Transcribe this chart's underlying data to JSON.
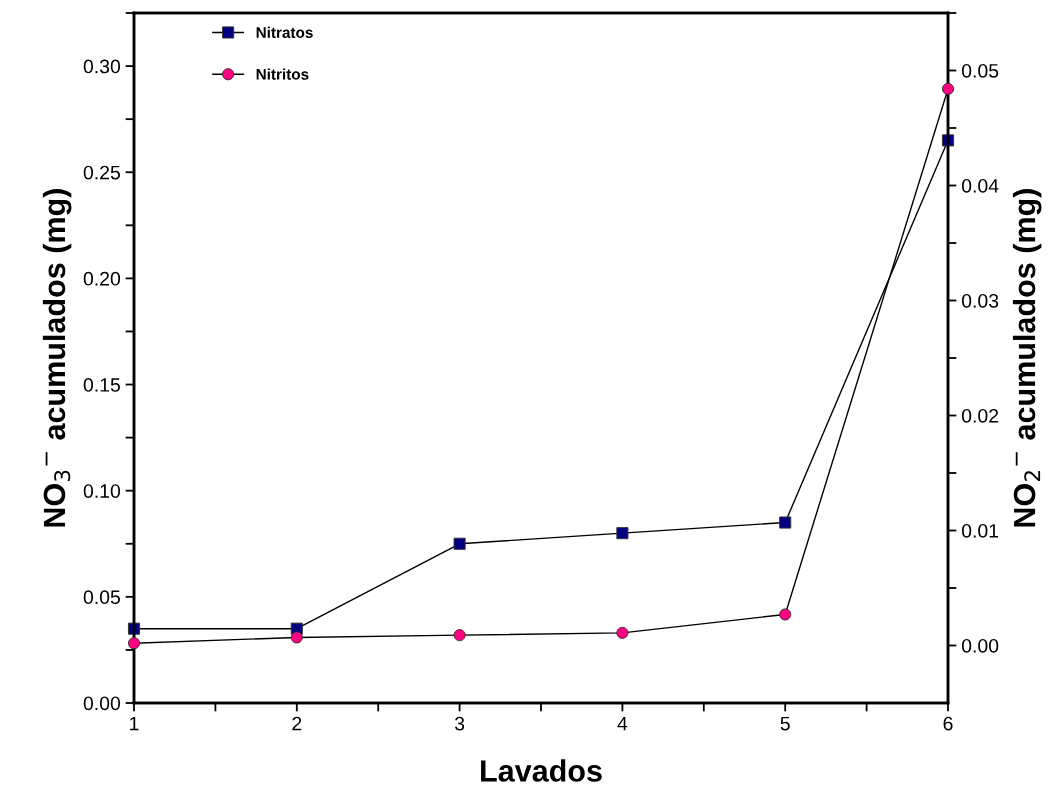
{
  "chart_data": {
    "type": "line",
    "xlabel": "Lavados",
    "ylabel": "NO$_{3}$$^{−}$ acumulados (mg)",
    "y2label": "NO$_{2}$$^{−}$ acumulados (mg)",
    "x": [
      1,
      2,
      3,
      4,
      5,
      6
    ],
    "series": [
      {
        "name": "Nitratos",
        "color": "#000080",
        "marker": "square",
        "values": [
          0.035,
          0.035,
          0.075,
          0.08,
          0.085,
          0.265
        ]
      },
      {
        "name": "Nitritos",
        "color": "#ff0080",
        "marker": "circle",
        "axis": "y2",
        "values": [
          0.0002,
          0.0007,
          0.0009,
          0.0011,
          0.0027,
          0.0484
        ]
      }
    ],
    "xlim": [
      1,
      6
    ],
    "xticks": [
      1,
      {
        "value": 1.5,
        "label": null
      },
      2,
      {
        "value": 2.5,
        "label": null
      },
      3,
      {
        "value": 3.5,
        "label": null
      },
      4,
      {
        "value": 4.5,
        "label": null
      },
      5,
      {
        "value": 5.5,
        "label": null
      },
      6
    ],
    "ylim": [
      0,
      0.325
    ],
    "yticks": [
      "0.00",
      {
        "value": 0.025,
        "label": null
      },
      {
        "value": 0.05,
        "label": "0.05"
      },
      {
        "value": 0.075,
        "label": null
      },
      {
        "value": 0.1,
        "label": "0.10"
      },
      {
        "value": 0.125,
        "label": null
      },
      {
        "value": 0.15,
        "label": "0.15"
      },
      {
        "value": 0.175,
        "label": null
      },
      {
        "value": 0.2,
        "label": "0.20"
      },
      {
        "value": 0.225,
        "label": null
      },
      {
        "value": 0.25,
        "label": "0.25"
      },
      {
        "value": 0.275,
        "label": null
      },
      {
        "value": 0.3,
        "label": "0.30"
      },
      {
        "value": 0.325,
        "label": null
      }
    ],
    "y2lim": [
      -0.005,
      0.055
    ],
    "y2ticks": [
      {
        "value": 0,
        "label": "0.00"
      },
      {
        "value": 0.005,
        "label": null
      },
      {
        "value": 0.01,
        "label": "0.01"
      },
      {
        "value": 0.015,
        "label": null
      },
      {
        "value": 0.02,
        "label": "0.02"
      },
      {
        "value": 0.025,
        "label": null
      },
      {
        "value": 0.03,
        "label": "0.03"
      },
      {
        "value": 0.035,
        "label": null
      },
      {
        "value": 0.04,
        "label": "0.04"
      },
      {
        "value": 0.045,
        "label": null
      },
      {
        "value": 0.05,
        "label": "0.05"
      },
      {
        "value": 0.055,
        "label": null
      }
    ],
    "grid": false,
    "legend": "top left",
    "line_style": "solid"
  }
}
